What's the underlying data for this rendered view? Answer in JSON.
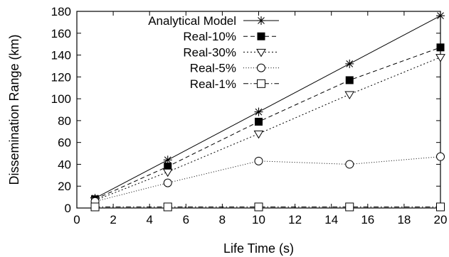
{
  "chart_data": {
    "type": "line",
    "title": "",
    "xlabel": "Life Time (s)",
    "ylabel": "Dissemination Range (km)",
    "xlim": [
      0,
      20
    ],
    "ylim": [
      0,
      180
    ],
    "xticks": [
      0,
      2,
      4,
      6,
      8,
      10,
      12,
      14,
      16,
      18,
      20
    ],
    "yticks": [
      0,
      20,
      40,
      60,
      80,
      100,
      120,
      140,
      160,
      180
    ],
    "grid": false,
    "legend_position": "top-left",
    "x": [
      1,
      5,
      10,
      15,
      20
    ],
    "series": [
      {
        "name": "Analytical Model",
        "marker": "asterisk",
        "dash": "solid",
        "values": [
          9,
          44,
          88,
          132,
          176
        ]
      },
      {
        "name": "Real-10%",
        "marker": "filled-square",
        "dash": "dashed",
        "values": [
          8,
          38,
          79,
          117,
          147
        ]
      },
      {
        "name": "Real-30%",
        "marker": "down-triangle",
        "dash": "dotted",
        "values": [
          7,
          33,
          68,
          104,
          138
        ]
      },
      {
        "name": "Real-5%",
        "marker": "circle",
        "dash": "fine-dotted",
        "values": [
          6,
          23,
          43,
          40,
          47
        ]
      },
      {
        "name": "Real-1%",
        "marker": "open-square",
        "dash": "dash-dot",
        "values": [
          1,
          1,
          1,
          1,
          1
        ]
      }
    ]
  }
}
